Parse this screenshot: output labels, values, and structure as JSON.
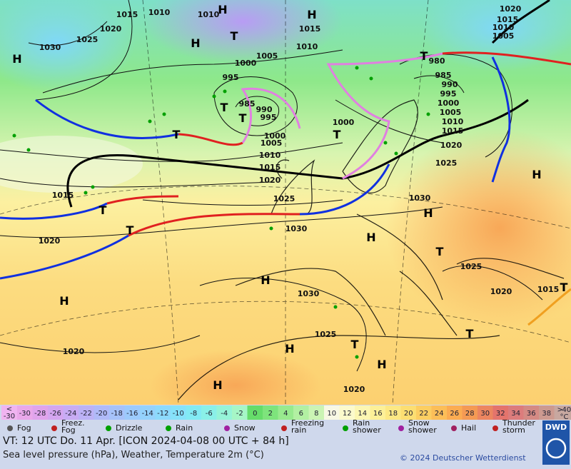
{
  "map": {
    "isobar_labels": [
      "1015",
      "1010",
      "1010",
      "1015",
      "1020",
      "1015",
      "1010",
      "1005",
      "1020",
      "1025",
      "1030",
      "1005",
      "1010",
      "1000",
      "995",
      "985",
      "990",
      "995",
      "980",
      "985",
      "990",
      "995",
      "1000",
      "1005",
      "1010",
      "1015",
      "1020",
      "1025",
      "1000",
      "1000",
      "1005",
      "1010",
      "1015",
      "1020",
      "1025",
      "1030",
      "1015",
      "1020",
      "1030",
      "1025",
      "1020",
      "1015",
      "1030",
      "1025",
      "1020",
      "1020"
    ],
    "centers": [
      "H",
      "H",
      "H",
      "H",
      "T",
      "T",
      "T",
      "T",
      "T",
      "T",
      "T",
      "H",
      "H",
      "T",
      "H",
      "H",
      "H",
      "T",
      "H",
      "H",
      "T",
      "H",
      "T",
      "T"
    ],
    "scale": {
      "below": "<",
      "below_value": "-30",
      "above": ">",
      "above_value": "40",
      "unit": "°C",
      "values": [
        -30,
        -28,
        -26,
        -24,
        -22,
        -20,
        -18,
        -16,
        -14,
        -12,
        -10,
        -8,
        -6,
        -4,
        -2,
        0,
        2,
        4,
        6,
        8,
        10,
        12,
        14,
        16,
        18,
        20,
        22,
        24,
        26,
        28,
        30,
        32,
        34,
        36,
        38
      ],
      "colors": [
        "#eaa8ea",
        "#e0a4ec",
        "#d4a6f0",
        "#c8acf4",
        "#bcb2f6",
        "#b0baf8",
        "#a6c2fa",
        "#9ccafc",
        "#94d2fc",
        "#8cdafc",
        "#86e2fa",
        "#82eaf4",
        "#8af0e8",
        "#96f4d8",
        "#a6f6c6",
        "#66dc6a",
        "#7ee47c",
        "#98ea8e",
        "#b2f0a2",
        "#cbf4b4",
        "#f8f8e4",
        "#fcfacc",
        "#fcf6b2",
        "#fcf098",
        "#fce884",
        "#fcde72",
        "#fcce62",
        "#fcbe58",
        "#fbac52",
        "#f49a54",
        "#ec8660",
        "#e4746c",
        "#dc7c7c",
        "#d48a84",
        "#cc9a90"
      ]
    },
    "legend": [
      [
        "Fog"
      ],
      [
        "Freez.",
        "Fog"
      ],
      [
        "Drizzle"
      ],
      [
        "Rain"
      ],
      [
        "Snow"
      ],
      [
        "Freezing",
        "rain"
      ],
      [
        "Rain",
        "shower"
      ],
      [
        "Snow",
        "shower"
      ],
      [
        "Hail"
      ],
      [
        "Thunder",
        "storm"
      ]
    ],
    "valid_time": "VT: 12 UTC Do.  11 Apr. [ICON 2024-04-08  00 UTC + 84 h]",
    "description": "Sea level pressure (hPa), Weather, Temperature 2m (°C)",
    "copyright": "© 2024 Deutscher Wetterdienst",
    "logo": "DWD"
  }
}
